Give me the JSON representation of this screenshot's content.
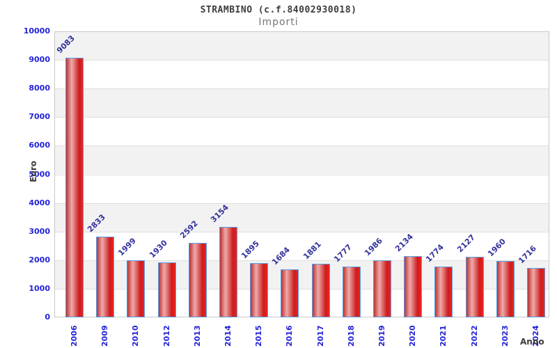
{
  "chart_data": {
    "type": "bar",
    "title": "STRAMBINO (c.f.84002930018)",
    "subtitle": "Importi",
    "xlabel": "Anno",
    "ylabel": "Euro",
    "categories": [
      "2006",
      "2009",
      "2010",
      "2012",
      "2013",
      "2014",
      "2015",
      "2016",
      "2017",
      "2018",
      "2019",
      "2020",
      "2021",
      "2022",
      "2023",
      "2024"
    ],
    "values": [
      9083,
      2833,
      1999,
      1930,
      2592,
      3154,
      1895,
      1684,
      1881,
      1777,
      1986,
      2134,
      1774,
      2127,
      1960,
      1716
    ],
    "ylim": [
      0,
      10000
    ],
    "ytick_step": 1000,
    "grid": "horizontal-bands-alternating",
    "legend": "none",
    "colors": {
      "bar_border": "#55a0e6",
      "bar_gradient_edges": "#bb3333",
      "bar_gradient_highlight": "#efaaaa",
      "bar_gradient_mid": "#cc1c1c",
      "bar_gradient_right": "#ee2222",
      "tick_label": "#2323d7",
      "value_label": "#32329b",
      "band_gray": "#f2f2f2",
      "band_white": "#ffffff",
      "gridline": "#dedede",
      "plot_border": "#c8c8c8",
      "title": "#3c3c3c",
      "subtitle": "#757575",
      "axis_title": "#3c3c3c"
    }
  }
}
